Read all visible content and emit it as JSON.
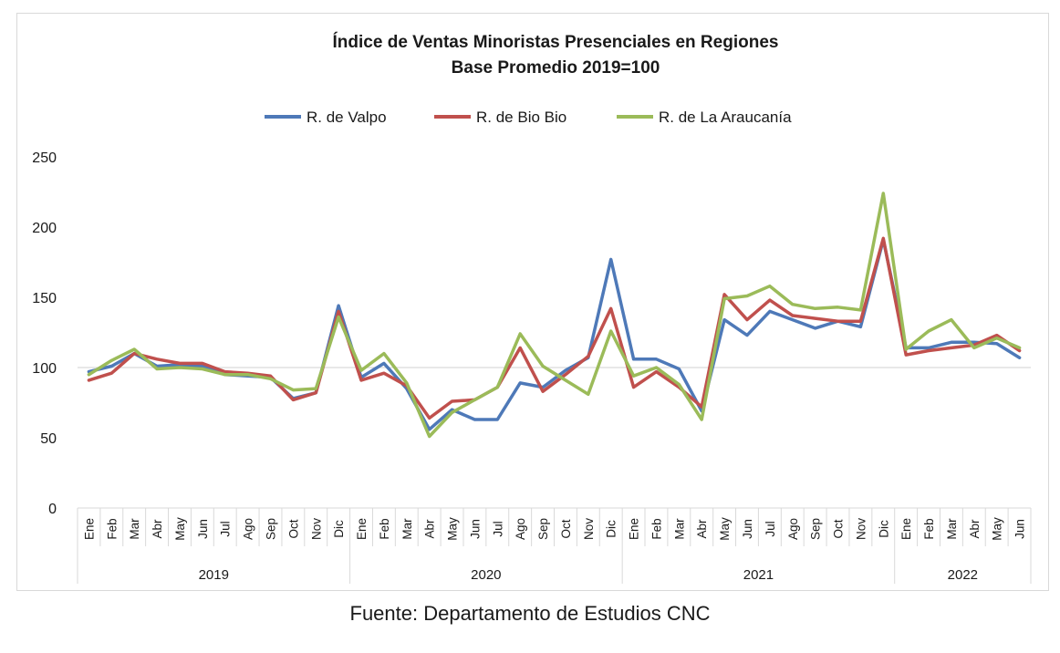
{
  "chart_data": {
    "type": "line",
    "title": "Índice de Ventas Minoristas Presenciales en Regiones",
    "subtitle": "Base Promedio 2019=100",
    "xlabel": "",
    "ylabel": "",
    "ylim": [
      0,
      250
    ],
    "yticks": [
      0,
      50,
      100,
      150,
      200,
      250
    ],
    "grid": false,
    "legend_position": "top",
    "reference_line": 100,
    "years": [
      {
        "label": "2019",
        "months": 12
      },
      {
        "label": "2020",
        "months": 12
      },
      {
        "label": "2021",
        "months": 12
      },
      {
        "label": "2022",
        "months": 6
      }
    ],
    "categories": [
      "Ene",
      "Feb",
      "Mar",
      "Abr",
      "May",
      "Jun",
      "Jul",
      "Ago",
      "Sep",
      "Oct",
      "Nov",
      "Dic",
      "Ene",
      "Feb",
      "Mar",
      "Abr",
      "May",
      "Jun",
      "Jul",
      "Ago",
      "Sep",
      "Oct",
      "Nov",
      "Dic",
      "Ene",
      "Feb",
      "Mar",
      "Abr",
      "May",
      "Jun",
      "Jul",
      "Ago",
      "Sep",
      "Oct",
      "Nov",
      "Dic",
      "Ene",
      "Feb",
      "Mar",
      "Abr",
      "May",
      "Jun"
    ],
    "series": [
      {
        "name": "R. de Valpo",
        "color": "#4e79b8",
        "values": [
          97,
          101,
          110,
          101,
          102,
          101,
          95,
          94,
          93,
          78,
          82,
          144,
          93,
          103,
          85,
          56,
          70,
          63,
          63,
          89,
          86,
          98,
          107,
          177,
          106,
          106,
          99,
          69,
          134,
          123,
          140,
          134,
          128,
          133,
          129,
          191,
          114,
          114,
          118,
          118,
          117,
          107
        ]
      },
      {
        "name": "R. de Bio Bio",
        "color": "#c0504d",
        "values": [
          91,
          96,
          110,
          106,
          103,
          103,
          97,
          96,
          94,
          77,
          82,
          140,
          91,
          96,
          87,
          64,
          76,
          77,
          86,
          114,
          83,
          95,
          108,
          142,
          86,
          97,
          86,
          72,
          152,
          134,
          148,
          137,
          135,
          133,
          133,
          192,
          109,
          112,
          114,
          116,
          123,
          112
        ]
      },
      {
        "name": "R. de La Araucanía",
        "color": "#9bbb59",
        "values": [
          95,
          105,
          113,
          99,
          100,
          99,
          95,
          95,
          92,
          84,
          85,
          136,
          98,
          110,
          89,
          51,
          68,
          77,
          86,
          124,
          101,
          91,
          81,
          126,
          94,
          100,
          88,
          63,
          149,
          151,
          158,
          145,
          142,
          143,
          141,
          224,
          113,
          126,
          134,
          114,
          121,
          114
        ]
      }
    ]
  },
  "source": "Fuente: Departamento de Estudios CNC"
}
